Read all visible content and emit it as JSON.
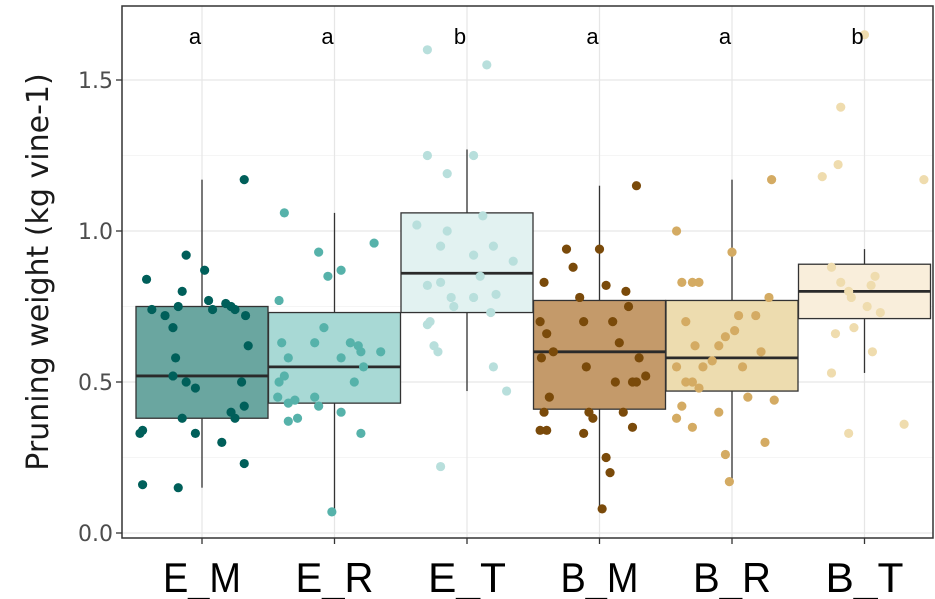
{
  "chart_data": {
    "type": "box",
    "title": "",
    "xlabel": "",
    "ylabel": "Pruning weight (kg vine-1)",
    "ylim": [
      0,
      1.7
    ],
    "yticks": [
      0.0,
      0.5,
      1.0,
      1.5
    ],
    "ytick_labels": [
      "0.0",
      "0.5",
      "1.0",
      "1.5"
    ],
    "grid": true,
    "legend": "none",
    "categories": [
      "E_M",
      "E_R",
      "E_T",
      "B_M",
      "B_R",
      "B_T"
    ],
    "boxes": [
      {
        "name": "E_M",
        "letter": "a",
        "whisker_low": 0.15,
        "q1": 0.38,
        "median": 0.52,
        "q3": 0.75,
        "whisker_high": 1.17,
        "box_fill": "#6aa6a0",
        "point_color": "#005f5a",
        "points": [
          [
            -0.42,
            0.84
          ],
          [
            -0.38,
            0.74
          ],
          [
            -0.45,
            0.34
          ],
          [
            -0.47,
            0.33
          ],
          [
            -0.45,
            0.16
          ],
          [
            -0.18,
            0.15
          ],
          [
            -0.12,
            0.92
          ],
          [
            -0.15,
            0.8
          ],
          [
            -0.18,
            0.75
          ],
          [
            -0.28,
            0.72
          ],
          [
            -0.22,
            0.68
          ],
          [
            -0.2,
            0.58
          ],
          [
            -0.22,
            0.52
          ],
          [
            -0.12,
            0.5
          ],
          [
            -0.05,
            0.48
          ],
          [
            -0.15,
            0.38
          ],
          [
            -0.05,
            0.33
          ],
          [
            0.05,
            0.77
          ],
          [
            0.02,
            0.87
          ],
          [
            0.08,
            0.74
          ],
          [
            0.18,
            0.76
          ],
          [
            0.25,
            0.74
          ],
          [
            0.33,
            0.72
          ],
          [
            0.35,
            0.62
          ],
          [
            0.3,
            0.5
          ],
          [
            0.32,
            0.42
          ],
          [
            0.25,
            0.38
          ],
          [
            0.22,
            0.4
          ],
          [
            0.15,
            0.3
          ],
          [
            0.32,
            0.23
          ],
          [
            0.32,
            1.17
          ],
          [
            0.22,
            0.75
          ]
        ]
      },
      {
        "name": "E_R",
        "letter": "a",
        "whisker_low": 0.07,
        "q1": 0.43,
        "median": 0.55,
        "q3": 0.73,
        "whisker_high": 1.06,
        "box_fill": "#a8d9d5",
        "point_color": "#56b2aa",
        "points": [
          [
            -0.38,
            1.06
          ],
          [
            -0.42,
            0.77
          ],
          [
            -0.4,
            0.63
          ],
          [
            -0.35,
            0.58
          ],
          [
            -0.38,
            0.52
          ],
          [
            -0.42,
            0.5
          ],
          [
            -0.43,
            0.45
          ],
          [
            -0.35,
            0.43
          ],
          [
            -0.3,
            0.44
          ],
          [
            -0.28,
            0.38
          ],
          [
            -0.35,
            0.37
          ],
          [
            -0.15,
            0.45
          ],
          [
            -0.12,
            0.42
          ],
          [
            -0.15,
            0.63
          ],
          [
            -0.08,
            0.68
          ],
          [
            -0.12,
            0.93
          ],
          [
            -0.05,
            0.85
          ],
          [
            0.05,
            0.87
          ],
          [
            0.12,
            0.63
          ],
          [
            0.05,
            0.58
          ],
          [
            0.18,
            0.62
          ],
          [
            0.22,
            0.55
          ],
          [
            0.15,
            0.5
          ],
          [
            0.2,
            0.6
          ],
          [
            0.3,
            0.96
          ],
          [
            0.35,
            0.6
          ],
          [
            0.05,
            0.4
          ],
          [
            0.2,
            0.33
          ],
          [
            -0.02,
            0.07
          ]
        ]
      },
      {
        "name": "E_T",
        "letter": "b",
        "whisker_low": 0.47,
        "q1": 0.73,
        "median": 0.86,
        "q3": 1.06,
        "whisker_high": 1.27,
        "box_fill": "#e2f2f1",
        "point_color": "#b8dfdc",
        "points": [
          [
            -0.3,
            1.6
          ],
          [
            0.15,
            1.55
          ],
          [
            -0.3,
            1.25
          ],
          [
            -0.15,
            1.19
          ],
          [
            0.05,
            1.25
          ],
          [
            -0.38,
            1.02
          ],
          [
            -0.15,
            1.0
          ],
          [
            -0.2,
            0.95
          ],
          [
            0.12,
            1.05
          ],
          [
            0.2,
            0.95
          ],
          [
            -0.3,
            0.82
          ],
          [
            -0.2,
            0.83
          ],
          [
            -0.12,
            0.78
          ],
          [
            -0.1,
            0.75
          ],
          [
            -0.28,
            0.7
          ],
          [
            0.05,
            0.92
          ],
          [
            0.1,
            0.85
          ],
          [
            0.22,
            0.79
          ],
          [
            0.18,
            0.73
          ],
          [
            -0.3,
            0.69
          ],
          [
            -0.25,
            0.62
          ],
          [
            -0.22,
            0.6
          ],
          [
            0.05,
            0.78
          ],
          [
            0.2,
            0.55
          ],
          [
            0.3,
            0.47
          ],
          [
            -0.2,
            0.22
          ],
          [
            0.35,
            0.9
          ]
        ]
      },
      {
        "name": "B_M",
        "letter": "a",
        "whisker_low": 0.08,
        "q1": 0.41,
        "median": 0.6,
        "q3": 0.77,
        "whisker_high": 1.15,
        "box_fill": "#c49a6a",
        "point_color": "#7a4a0a",
        "points": [
          [
            -0.42,
            0.83
          ],
          [
            -0.45,
            0.7
          ],
          [
            -0.4,
            0.66
          ],
          [
            -0.44,
            0.58
          ],
          [
            -0.42,
            0.4
          ],
          [
            -0.45,
            0.34
          ],
          [
            -0.4,
            0.34
          ],
          [
            -0.38,
            0.45
          ],
          [
            -0.35,
            0.6
          ],
          [
            -0.25,
            0.94
          ],
          [
            -0.2,
            0.88
          ],
          [
            -0.15,
            0.78
          ],
          [
            -0.12,
            0.7
          ],
          [
            -0.1,
            0.55
          ],
          [
            -0.08,
            0.4
          ],
          [
            -0.05,
            0.38
          ],
          [
            -0.12,
            0.33
          ],
          [
            0.0,
            0.94
          ],
          [
            0.05,
            0.82
          ],
          [
            0.1,
            0.7
          ],
          [
            0.12,
            0.5
          ],
          [
            0.15,
            0.63
          ],
          [
            0.2,
            0.8
          ],
          [
            0.22,
            0.75
          ],
          [
            0.25,
            0.5
          ],
          [
            0.28,
            0.5
          ],
          [
            0.3,
            0.58
          ],
          [
            0.35,
            0.52
          ],
          [
            0.25,
            0.35
          ],
          [
            0.18,
            0.4
          ],
          [
            0.05,
            0.25
          ],
          [
            0.08,
            0.2
          ],
          [
            0.02,
            0.08
          ],
          [
            0.28,
            1.15
          ]
        ]
      },
      {
        "name": "B_R",
        "letter": "a",
        "whisker_low": 0.17,
        "q1": 0.47,
        "median": 0.58,
        "q3": 0.77,
        "whisker_high": 1.17,
        "box_fill": "#eddcaf",
        "point_color": "#d4ab63",
        "points": [
          [
            -0.42,
            1.0
          ],
          [
            -0.38,
            0.83
          ],
          [
            -0.3,
            0.83
          ],
          [
            -0.25,
            0.83
          ],
          [
            -0.35,
            0.7
          ],
          [
            -0.28,
            0.62
          ],
          [
            -0.42,
            0.55
          ],
          [
            -0.35,
            0.5
          ],
          [
            -0.3,
            0.5
          ],
          [
            -0.25,
            0.48
          ],
          [
            -0.38,
            0.42
          ],
          [
            -0.42,
            0.38
          ],
          [
            -0.3,
            0.35
          ],
          [
            -0.22,
            0.55
          ],
          [
            -0.15,
            0.57
          ],
          [
            -0.1,
            0.62
          ],
          [
            -0.05,
            0.65
          ],
          [
            0.0,
            0.93
          ],
          [
            0.05,
            0.72
          ],
          [
            0.02,
            0.67
          ],
          [
            0.08,
            0.55
          ],
          [
            0.12,
            0.45
          ],
          [
            0.18,
            0.72
          ],
          [
            0.22,
            0.6
          ],
          [
            0.28,
            0.78
          ],
          [
            0.32,
            0.44
          ],
          [
            0.25,
            0.3
          ],
          [
            -0.1,
            0.4
          ],
          [
            -0.05,
            0.26
          ],
          [
            -0.02,
            0.17
          ],
          [
            0.3,
            1.17
          ]
        ]
      },
      {
        "name": "B_T",
        "letter": "b",
        "whisker_low": 0.53,
        "q1": 0.71,
        "median": 0.8,
        "q3": 0.89,
        "whisker_high": 0.94,
        "box_fill": "#f9eedb",
        "point_color": "#efdcae",
        "points": [
          [
            0.0,
            1.65
          ],
          [
            -0.18,
            1.41
          ],
          [
            -0.2,
            1.22
          ],
          [
            -0.32,
            1.18
          ],
          [
            -0.25,
            0.88
          ],
          [
            -0.18,
            0.83
          ],
          [
            -0.12,
            0.8
          ],
          [
            -0.1,
            0.78
          ],
          [
            0.02,
            0.75
          ],
          [
            0.05,
            0.82
          ],
          [
            0.08,
            0.85
          ],
          [
            0.12,
            0.73
          ],
          [
            -0.22,
            0.66
          ],
          [
            -0.08,
            0.68
          ],
          [
            0.06,
            0.6
          ],
          [
            -0.25,
            0.53
          ],
          [
            -0.12,
            0.33
          ],
          [
            0.3,
            0.36
          ],
          [
            0.45,
            1.17
          ]
        ]
      }
    ]
  }
}
